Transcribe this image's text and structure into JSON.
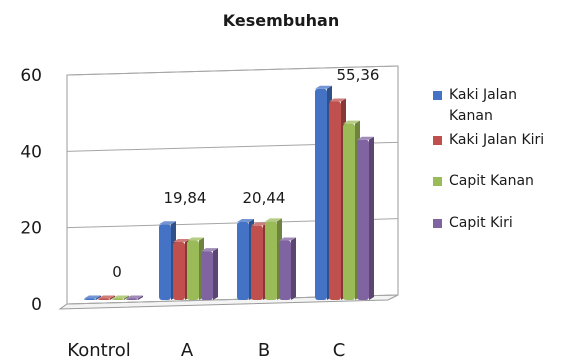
{
  "chart_data": {
    "type": "bar",
    "title": "Kesembuhan",
    "categories": [
      "Kontrol",
      "A",
      "B",
      "C"
    ],
    "ylim": [
      0,
      60
    ],
    "yticks": [
      "0",
      "20",
      "40",
      "60"
    ],
    "grid": true,
    "legend_position": "right",
    "series": [
      {
        "name": "Kaki Jalan Kanan",
        "color": "#4472c4",
        "values": [
          0,
          19.84,
          20.44,
          55.36
        ]
      },
      {
        "name": "Kaki Jalan Kiri",
        "color": "#c0504d",
        "values": [
          0,
          15.2,
          19.5,
          52.0
        ]
      },
      {
        "name": "Capit Kanan",
        "color": "#9bbb59",
        "values": [
          0,
          15.6,
          20.6,
          46.2
        ]
      },
      {
        "name": "Capit Kiri",
        "color": "#8064a2",
        "values": [
          0,
          12.8,
          15.6,
          42.0
        ]
      }
    ],
    "data_labels": [
      {
        "category": "Kontrol",
        "text": "0"
      },
      {
        "category": "A",
        "text": "19,84"
      },
      {
        "category": "B",
        "text": "20,44"
      },
      {
        "category": "C",
        "text": "55,36"
      }
    ]
  }
}
